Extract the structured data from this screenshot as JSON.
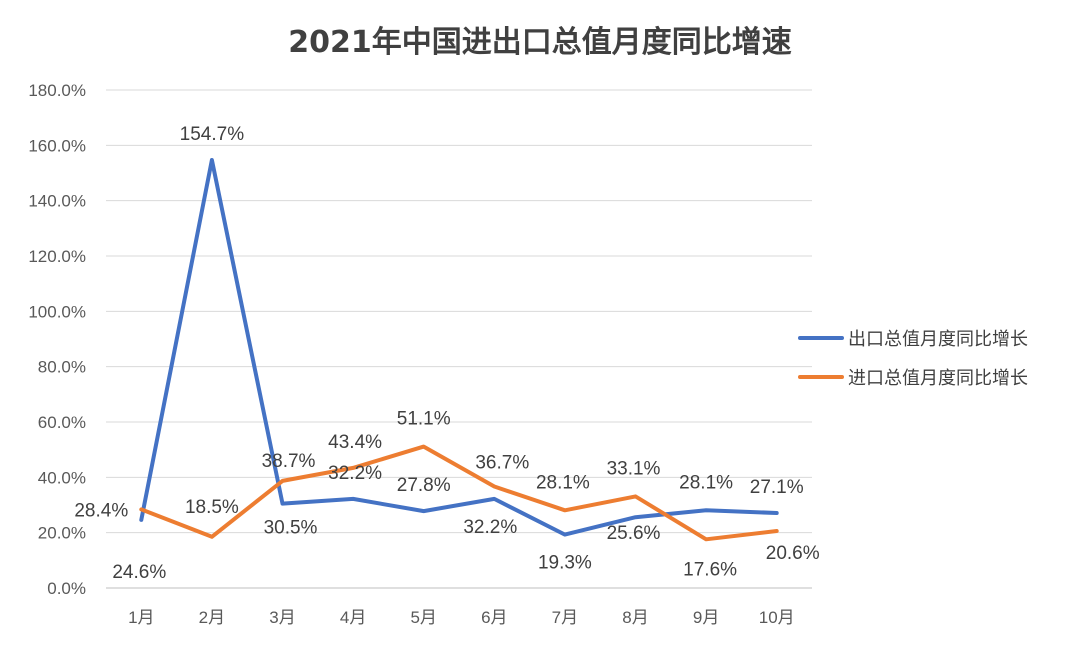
{
  "chart_data": {
    "type": "line",
    "title": "2021年中国进出口总值月度同比增速",
    "categories": [
      "1月",
      "2月",
      "3月",
      "4月",
      "5月",
      "6月",
      "7月",
      "8月",
      "9月",
      "10月"
    ],
    "ylim": [
      0,
      180
    ],
    "yticks": [
      0,
      20,
      40,
      60,
      80,
      100,
      120,
      140,
      160,
      180
    ],
    "ytick_labels": [
      "0.0%",
      "20.0%",
      "40.0%",
      "60.0%",
      "80.0%",
      "100.0%",
      "120.0%",
      "140.0%",
      "160.0%",
      "180.0%"
    ],
    "grid": true,
    "legend_position": "right",
    "series": [
      {
        "name": "出口总值月度同比增长",
        "color": "#4472C4",
        "values": [
          24.6,
          154.7,
          30.5,
          32.2,
          27.8,
          32.2,
          19.3,
          25.6,
          28.1,
          27.1
        ],
        "labels": [
          "24.6%",
          "154.7%",
          "30.5%",
          "32.2%",
          "27.8%",
          "32.2%",
          "19.3%",
          "25.6%",
          "28.1%",
          "27.1%"
        ]
      },
      {
        "name": "进口总值月度同比增长",
        "color": "#ED7D31",
        "values": [
          28.4,
          18.5,
          38.7,
          43.4,
          51.1,
          36.7,
          28.1,
          33.1,
          17.6,
          20.6
        ],
        "labels": [
          "28.4%",
          "18.5%",
          "38.7%",
          "43.4%",
          "51.1%",
          "36.7%",
          "28.1%",
          "33.1%",
          "17.6%",
          "20.6%"
        ]
      }
    ]
  }
}
